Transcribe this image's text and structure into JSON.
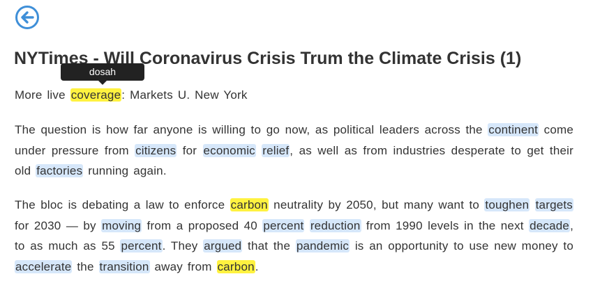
{
  "nav": {
    "back_icon": "arrow-left-circle-icon",
    "accent": "#3f8fd8"
  },
  "article": {
    "title": "NYTimes - Will Coronavirus Crisis Trum the Climate Crisis (1)",
    "tooltip": "dosah",
    "subtitle": [
      {
        "t": "More live "
      },
      {
        "t": "coverage",
        "h": "yellow"
      },
      {
        "t": ": Markets U. New York"
      }
    ],
    "paragraphs": [
      [
        {
          "t": "The question is how far anyone is willing to go now, as political leaders across the "
        },
        {
          "t": "continent",
          "h": "blue"
        },
        {
          "t": " come under pressure from "
        },
        {
          "t": "citizens",
          "h": "blue"
        },
        {
          "t": " for "
        },
        {
          "t": "economic",
          "h": "blue"
        },
        {
          "t": " "
        },
        {
          "t": "relief",
          "h": "blue"
        },
        {
          "t": ", as well as from industries desperate to get their old "
        },
        {
          "t": "factories",
          "h": "blue"
        },
        {
          "t": " running again."
        }
      ],
      [
        {
          "t": "The bloc is debating a law to enforce "
        },
        {
          "t": "carbon",
          "h": "yellow"
        },
        {
          "t": " neutrality by 2050, but many want to "
        },
        {
          "t": "toughen",
          "h": "blue"
        },
        {
          "t": " "
        },
        {
          "t": "targets",
          "h": "blue"
        },
        {
          "t": " for 2030 — by "
        },
        {
          "t": "moving",
          "h": "blue"
        },
        {
          "t": " from a proposed 40 "
        },
        {
          "t": "percent",
          "h": "blue"
        },
        {
          "t": " "
        },
        {
          "t": "reduction",
          "h": "blue"
        },
        {
          "t": " from 1990 levels in the next "
        },
        {
          "t": "decade",
          "h": "blue"
        },
        {
          "t": ", to as much as 55 "
        },
        {
          "t": "percent",
          "h": "blue"
        },
        {
          "t": ". They "
        },
        {
          "t": "argued",
          "h": "blue"
        },
        {
          "t": " that the "
        },
        {
          "t": "pandemic",
          "h": "blue"
        },
        {
          "t": " is an opportunity to use new money to "
        },
        {
          "t": "accelerate",
          "h": "blue"
        },
        {
          "t": " the "
        },
        {
          "t": "transition",
          "h": "blue"
        },
        {
          "t": " away from "
        },
        {
          "t": "carbon",
          "h": "yellow"
        },
        {
          "t": "."
        }
      ]
    ]
  },
  "colors": {
    "highlight_known": "#d6e7fa",
    "highlight_selected": "#fff240",
    "tooltip_bg": "#222222",
    "text": "#333333"
  }
}
